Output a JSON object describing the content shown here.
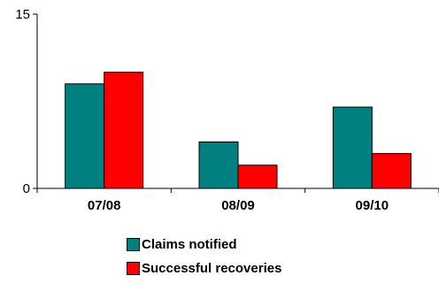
{
  "chart_data": {
    "type": "bar",
    "categories": [
      "07/08",
      "08/09",
      "09/10"
    ],
    "series": [
      {
        "name": "Claims notified",
        "values": [
          9,
          4,
          7
        ],
        "color": "#008080"
      },
      {
        "name": "Successful recoveries",
        "values": [
          10,
          2,
          3
        ],
        "color": "#ff0000"
      }
    ],
    "ylim": [
      0,
      15
    ],
    "yticks": [
      "0",
      "15"
    ],
    "grid": false,
    "legend_position": "bottom"
  }
}
